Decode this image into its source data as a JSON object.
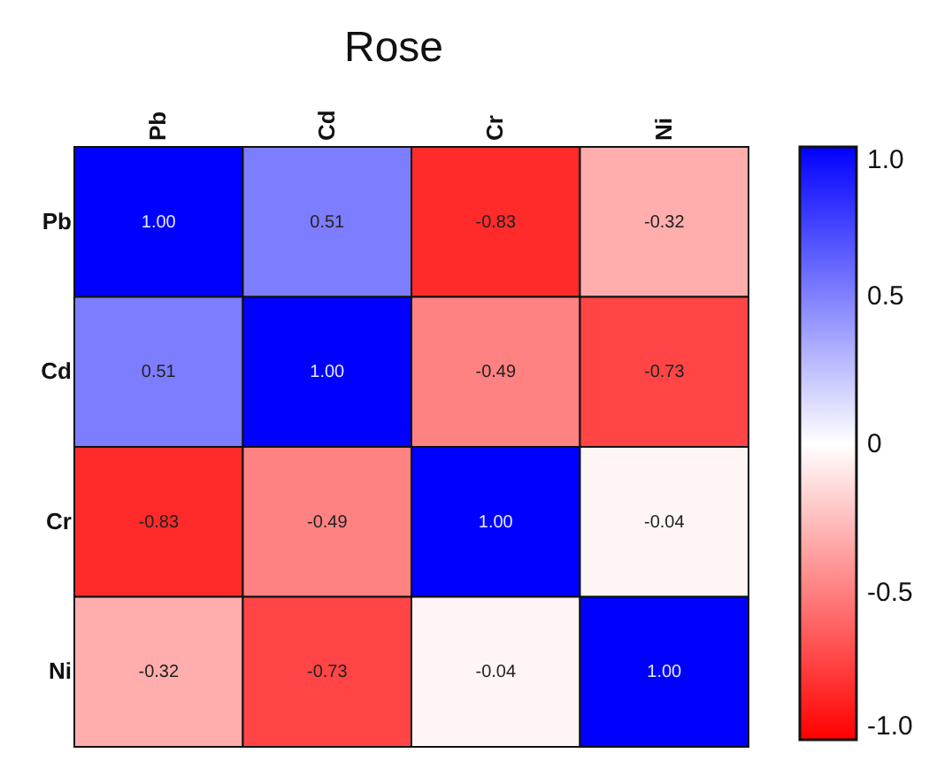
{
  "chart_data": {
    "type": "heatmap",
    "title": "Rose",
    "categories": [
      "Pb",
      "Cd",
      "Cr",
      "Ni"
    ],
    "y_categories": [
      "Pb",
      "Cd",
      "Cr",
      "Ni"
    ],
    "cells": [
      [
        1,
        0.51,
        -0.83,
        -0.32
      ],
      [
        0.51,
        1,
        -0.49,
        -0.73
      ],
      [
        -0.83,
        -0.49,
        1,
        -0.04
      ],
      [
        -0.32,
        -0.73,
        -0.04,
        1
      ]
    ],
    "cell_labels": [
      [
        "1.00",
        "0.51",
        "-0.83",
        "-0.32"
      ],
      [
        "0.51",
        "1.00",
        "-0.49",
        "-0.73"
      ],
      [
        "-0.83",
        "-0.49",
        "1.00",
        "-0.04"
      ],
      [
        "-0.32",
        "-0.73",
        "-0.04",
        "1.00"
      ]
    ],
    "clim": [
      -1,
      1
    ],
    "cticks": [
      {
        "value": 1,
        "label": "1.0"
      },
      0.5,
      0,
      -0.5,
      {
        "value": -1,
        "label": "-1.0"
      }
    ]
  }
}
